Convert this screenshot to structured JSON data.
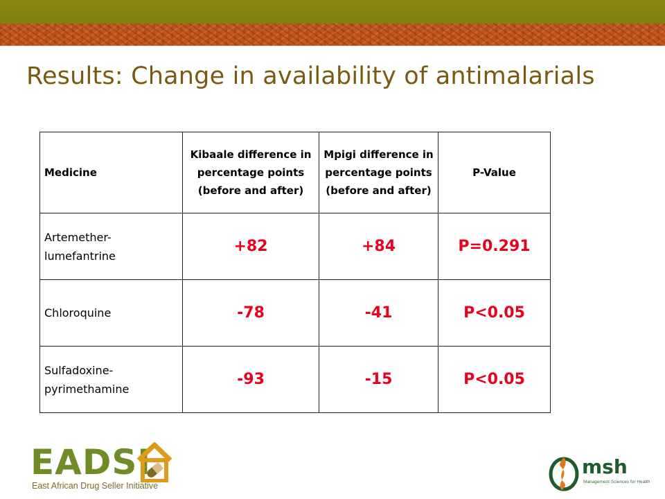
{
  "slide": {
    "title": "Results: Change in availability of antimalarials"
  },
  "table": {
    "headers": [
      "Medicine",
      "Kibaale difference in percentage points (before and after)",
      "Mpigi difference in percentage points (before and after)",
      "P-Value"
    ],
    "rows": [
      {
        "medicine": "Artemether-lumefantrine",
        "kibaale": "+82",
        "mpigi": "+84",
        "p_value": "P=0.291"
      },
      {
        "medicine": "Chloroquine",
        "kibaale": "-78",
        "mpigi": "-41",
        "p_value": "P<0.05"
      },
      {
        "medicine": "Sulfadoxine-pyrimethamine",
        "kibaale": "-93",
        "mpigi": "-15",
        "p_value": "P<0.05"
      }
    ]
  },
  "logos": {
    "eadsi": {
      "name": "EADSI",
      "tagline": "East African Drug Seller Initiative"
    },
    "msh": {
      "name": "msh",
      "tagline": "Management Sciences for Health"
    }
  },
  "colors": {
    "band_top": "#7f800d",
    "band_pattern": "#c2561e",
    "title": "#7a5a12",
    "value_red": "#e8001c",
    "eadsi_green": "#6f8c26",
    "msh_green": "#1f5b2c",
    "msh_orange": "#e0781e"
  }
}
